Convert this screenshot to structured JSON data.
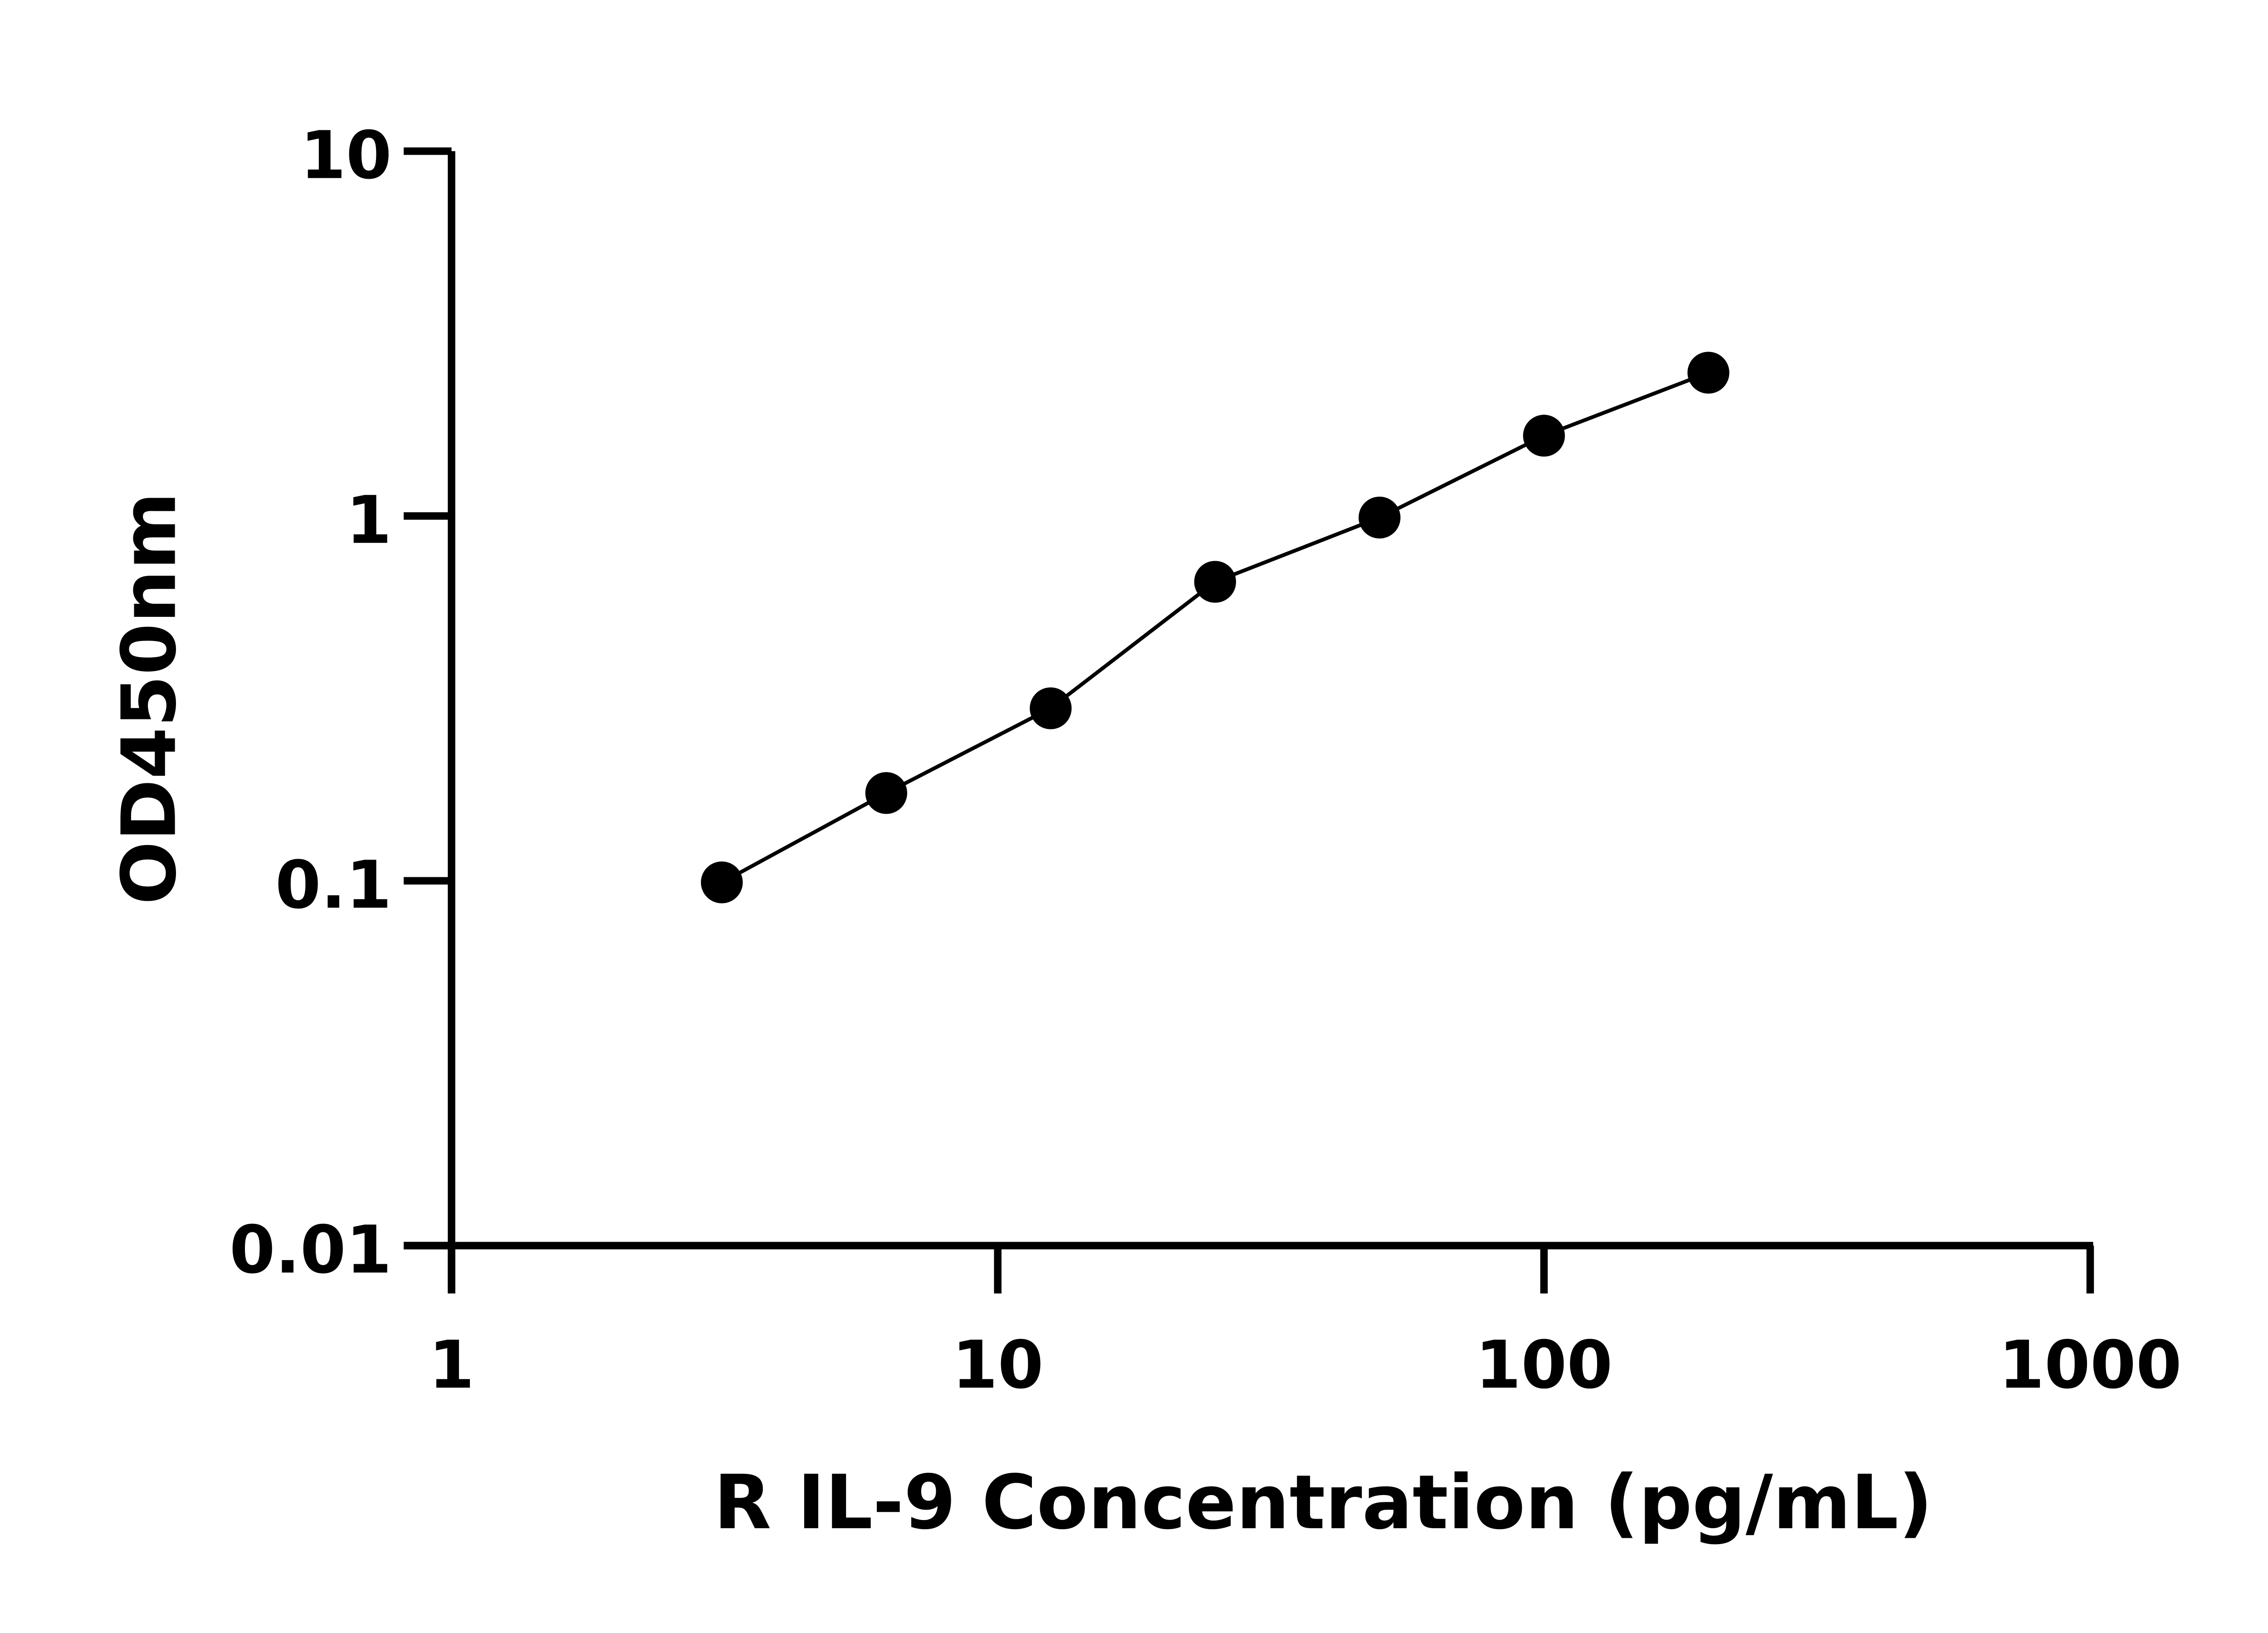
{
  "chart_data": {
    "type": "scatter",
    "title": "",
    "xlabel": "R IL-9 Concentration (pg/mL)",
    "ylabel": "OD450nm",
    "x_scale": "log",
    "y_scale": "log",
    "xlim": [
      1,
      1000
    ],
    "ylim": [
      0.01,
      10
    ],
    "x_ticks": [
      "1",
      "10",
      "100",
      "1000"
    ],
    "y_ticks": [
      "0.01",
      "0.1",
      "1",
      "10"
    ],
    "grid": false,
    "fit_line": true,
    "series": [
      {
        "x": [
          3.125,
          6.25,
          12.5,
          25,
          50,
          100,
          200
        ],
        "y": [
          0.099,
          0.174,
          0.297,
          0.66,
          0.99,
          1.66,
          2.47
        ]
      }
    ],
    "colors": {
      "marker": "#000000",
      "line": "#000000",
      "axis": "#000000"
    }
  }
}
